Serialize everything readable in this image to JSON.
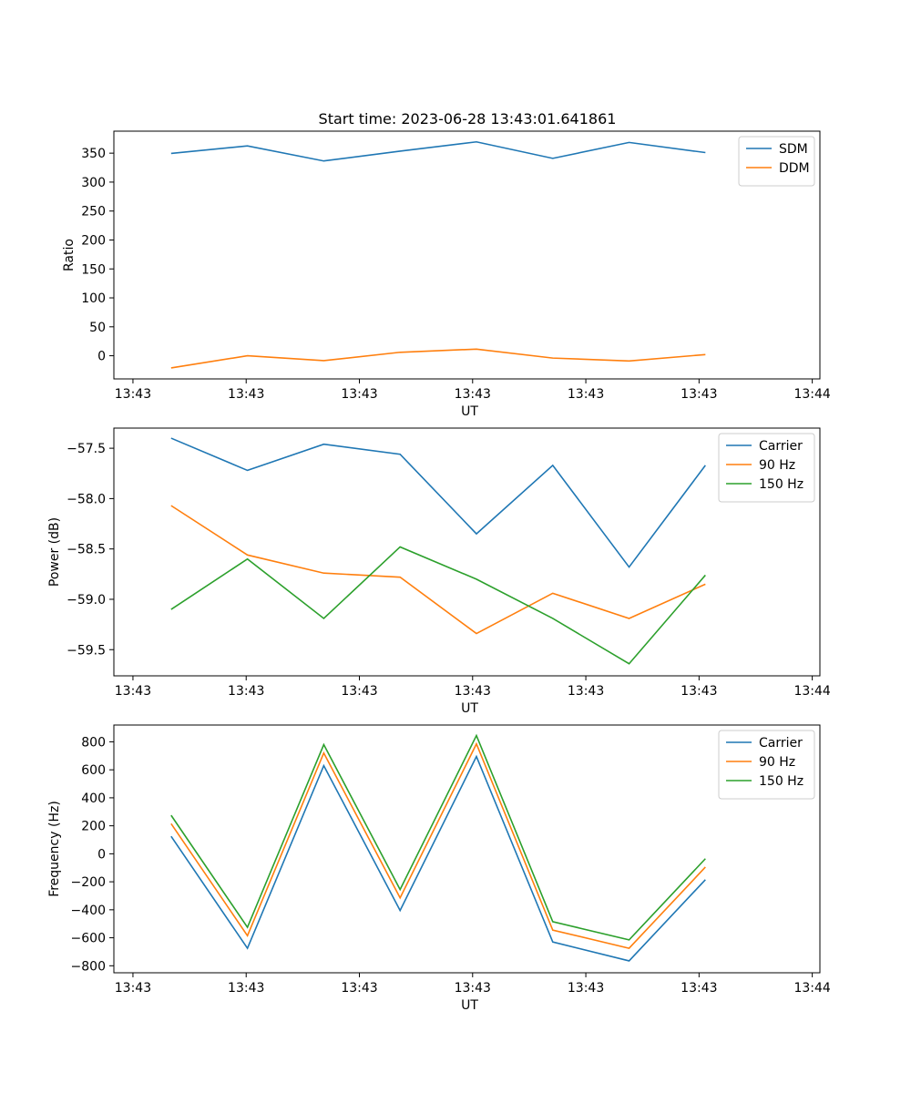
{
  "figure": {
    "title": "Start time: 2023-06-28 13:43:01.641861"
  },
  "chart_data": [
    {
      "type": "line",
      "xlabel": "UT",
      "ylabel": "Ratio",
      "x_tick_labels": [
        "13:43",
        "13:43",
        "13:43",
        "13:43",
        "13:43",
        "13:43",
        "13:44"
      ],
      "xlim": [
        -0.75,
        8.5
      ],
      "ylim": [
        -40,
        388
      ],
      "y_ticks": [
        0,
        50,
        100,
        150,
        200,
        250,
        300,
        350
      ],
      "grid": false,
      "legend": "top-right",
      "colors": [
        "#1f77b4",
        "#ff7f0e"
      ],
      "series": [
        {
          "name": "SDM",
          "values": [
            349.5,
            362.5,
            336.5,
            353.5,
            369.5,
            341.0,
            368.5,
            351.0
          ]
        },
        {
          "name": "DDM",
          "values": [
            -21.0,
            0.0,
            -8.5,
            6.0,
            11.5,
            -4.0,
            -9.0,
            2.0
          ]
        }
      ]
    },
    {
      "type": "line",
      "xlabel": "UT",
      "ylabel": "Power (dB)",
      "x_tick_labels": [
        "13:43",
        "13:43",
        "13:43",
        "13:43",
        "13:43",
        "13:43",
        "13:44"
      ],
      "xlim": [
        -0.75,
        8.5
      ],
      "ylim": [
        -59.76,
        -57.3
      ],
      "y_ticks": [
        -59.5,
        -59.0,
        -58.5,
        -58.0,
        -57.5
      ],
      "y_tick_labels": [
        "−59.5",
        "−59.0",
        "−58.5",
        "−58.0",
        "−57.5"
      ],
      "grid": false,
      "legend": "top-right",
      "colors": [
        "#1f77b4",
        "#ff7f0e",
        "#2ca02c"
      ],
      "series": [
        {
          "name": "Carrier",
          "values": [
            -57.4,
            -57.72,
            -57.46,
            -57.56,
            -58.35,
            -57.67,
            -58.68,
            -57.67
          ]
        },
        {
          "name": "90 Hz",
          "values": [
            -58.07,
            -58.56,
            -58.74,
            -58.78,
            -59.34,
            -58.94,
            -59.19,
            -58.85
          ]
        },
        {
          "name": "150 Hz",
          "values": [
            -59.1,
            -58.6,
            -59.19,
            -58.48,
            -58.8,
            -59.19,
            -59.64,
            -58.76
          ]
        }
      ]
    },
    {
      "type": "line",
      "xlabel": "UT",
      "ylabel": "Frequency (Hz)",
      "x_tick_labels": [
        "13:43",
        "13:43",
        "13:43",
        "13:43",
        "13:43",
        "13:43",
        "13:44"
      ],
      "xlim": [
        -0.75,
        8.5
      ],
      "ylim": [
        -850,
        920
      ],
      "y_ticks": [
        -800,
        -600,
        -400,
        -200,
        0,
        200,
        400,
        600,
        800
      ],
      "y_tick_labels": [
        "−800",
        "−600",
        "−400",
        "−200",
        "0",
        "200",
        "400",
        "600",
        "800"
      ],
      "grid": false,
      "legend": "top-right",
      "colors": [
        "#1f77b4",
        "#ff7f0e",
        "#2ca02c"
      ],
      "series": [
        {
          "name": "Carrier",
          "values": [
            125,
            -675,
            630,
            -405,
            695,
            -630,
            -765,
            -185
          ]
        },
        {
          "name": "90 Hz",
          "values": [
            215,
            -585,
            720,
            -315,
            785,
            -545,
            -675,
            -95
          ]
        },
        {
          "name": "150 Hz",
          "values": [
            275,
            -525,
            780,
            -255,
            845,
            -485,
            -615,
            -35
          ]
        }
      ]
    }
  ]
}
